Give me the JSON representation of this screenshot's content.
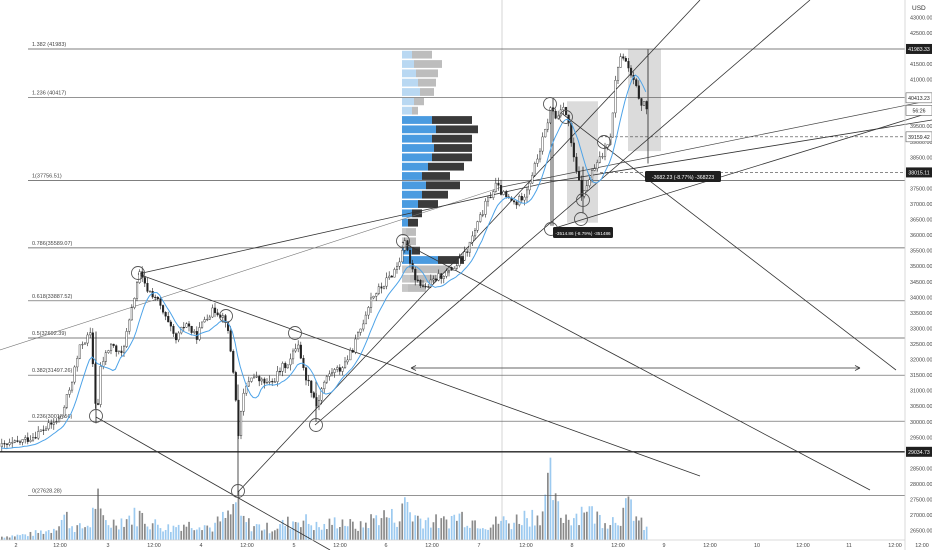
{
  "currency_label": "USD",
  "price_tag_label": "USD",
  "chart_data": {
    "type": "candlestick",
    "x_ticks": [
      "2",
      "12:00",
      "3",
      "12:00",
      "4",
      "12:00",
      "5",
      "12:00",
      "6",
      "12:00",
      "7",
      "12:00",
      "8",
      "12:00",
      "9",
      "12:00",
      "10",
      "12:00",
      "11",
      "12:00",
      "12:00"
    ],
    "y_ticks": [
      26500,
      27000,
      27500,
      28000,
      28500,
      29000,
      29500,
      30000,
      30500,
      31000,
      31500,
      32000,
      32500,
      33000,
      33500,
      34000,
      34500,
      35000,
      35500,
      36000,
      36500,
      37000,
      37500,
      38000,
      38500,
      39000,
      39500,
      40000,
      40500,
      41000,
      41500,
      42000,
      42500,
      43000
    ],
    "ylim": [
      26200,
      43300
    ],
    "price_tags": [
      {
        "label": "41983.33",
        "value": 41983.33,
        "style": "dark"
      },
      {
        "label": "40417.07",
        "value": 40417.07,
        "style": "dark"
      },
      {
        "label": "40413.23",
        "value": 40413.23,
        "style": "light"
      },
      {
        "label": "56:26",
        "value": 40010,
        "style": "light"
      },
      {
        "label": "39159.42",
        "value": 39159.42,
        "style": "light"
      },
      {
        "label": "38015.11",
        "value": 38015.11,
        "style": "dark"
      },
      {
        "label": "29034.73",
        "value": 29034.73,
        "style": "dark"
      }
    ],
    "fib_levels": [
      {
        "label": "1.382 (41983)",
        "value": 41983
      },
      {
        "label": "1.236 (40417)",
        "value": 40417
      },
      {
        "label": "1(37756.51)",
        "value": 37756.51
      },
      {
        "label": "0.786(35589.07)",
        "value": 35589.07
      },
      {
        "label": "0.618(33887.52)",
        "value": 33887.52
      },
      {
        "label": "0.5(32692.39)",
        "value": 32692.39
      },
      {
        "label": "0.382(31497.26)",
        "value": 31497.26
      },
      {
        "label": "0.236(30018.56)",
        "value": 30018.56
      },
      {
        "label": "0(27628.28)",
        "value": 27628.28
      }
    ],
    "annotations": [
      {
        "label": "-3682.23 (-8.77%) -368223"
      },
      {
        "label": "-3514.86 (-8.79%) -351486"
      }
    ],
    "price_path": [
      [
        0,
        29200
      ],
      [
        15,
        29300
      ],
      [
        30,
        29500
      ],
      [
        45,
        29800
      ],
      [
        60,
        30100
      ],
      [
        70,
        31200
      ],
      [
        80,
        32500
      ],
      [
        90,
        32800
      ],
      [
        96,
        30000
      ],
      [
        100,
        31800
      ],
      [
        110,
        32500
      ],
      [
        120,
        32100
      ],
      [
        130,
        33400
      ],
      [
        138,
        34800
      ],
      [
        145,
        34300
      ],
      [
        155,
        34000
      ],
      [
        165,
        33300
      ],
      [
        175,
        32600
      ],
      [
        185,
        33200
      ],
      [
        195,
        32700
      ],
      [
        205,
        33400
      ],
      [
        215,
        33600
      ],
      [
        225,
        33300
      ],
      [
        232,
        31800
      ],
      [
        238,
        29500
      ],
      [
        242,
        30800
      ],
      [
        250,
        31500
      ],
      [
        260,
        31300
      ],
      [
        270,
        31200
      ],
      [
        280,
        31700
      ],
      [
        290,
        32000
      ],
      [
        297,
        32600
      ],
      [
        303,
        31600
      ],
      [
        310,
        31100
      ],
      [
        316,
        30500
      ],
      [
        322,
        31200
      ],
      [
        330,
        31600
      ],
      [
        340,
        31700
      ],
      [
        350,
        32200
      ],
      [
        360,
        33000
      ],
      [
        370,
        34000
      ],
      [
        380,
        34300
      ],
      [
        390,
        34700
      ],
      [
        398,
        35100
      ],
      [
        403,
        35800
      ],
      [
        408,
        35300
      ],
      [
        415,
        34600
      ],
      [
        425,
        34300
      ],
      [
        435,
        34600
      ],
      [
        445,
        34800
      ],
      [
        455,
        35000
      ],
      [
        465,
        35400
      ],
      [
        475,
        36200
      ],
      [
        485,
        37000
      ],
      [
        495,
        37600
      ],
      [
        505,
        37200
      ],
      [
        515,
        37000
      ],
      [
        525,
        37400
      ],
      [
        535,
        38300
      ],
      [
        545,
        39400
      ],
      [
        550,
        40100
      ],
      [
        556,
        39700
      ],
      [
        562,
        40300
      ],
      [
        568,
        39500
      ],
      [
        573,
        38400
      ],
      [
        578,
        37700
      ],
      [
        582,
        37200
      ],
      [
        588,
        37800
      ],
      [
        595,
        38200
      ],
      [
        602,
        38600
      ],
      [
        610,
        39300
      ],
      [
        616,
        41400
      ],
      [
        622,
        41800
      ],
      [
        628,
        41300
      ],
      [
        634,
        40800
      ],
      [
        640,
        40300
      ],
      [
        645,
        40100
      ]
    ],
    "volume_path": [
      [
        0,
        4
      ],
      [
        10,
        5
      ],
      [
        20,
        6
      ],
      [
        30,
        7
      ],
      [
        40,
        10
      ],
      [
        50,
        12
      ],
      [
        60,
        24
      ],
      [
        65,
        30
      ],
      [
        70,
        18
      ],
      [
        80,
        14
      ],
      [
        90,
        20
      ],
      [
        96,
        56
      ],
      [
        100,
        26
      ],
      [
        110,
        20
      ],
      [
        120,
        24
      ],
      [
        130,
        28
      ],
      [
        140,
        30
      ],
      [
        150,
        20
      ],
      [
        160,
        18
      ],
      [
        170,
        14
      ],
      [
        180,
        20
      ],
      [
        190,
        18
      ],
      [
        200,
        22
      ],
      [
        210,
        14
      ],
      [
        220,
        24
      ],
      [
        230,
        30
      ],
      [
        236,
        52
      ],
      [
        240,
        26
      ],
      [
        250,
        18
      ],
      [
        260,
        16
      ],
      [
        270,
        14
      ],
      [
        280,
        18
      ],
      [
        290,
        22
      ],
      [
        300,
        26
      ],
      [
        310,
        20
      ],
      [
        320,
        14
      ],
      [
        330,
        20
      ],
      [
        340,
        24
      ],
      [
        350,
        18
      ],
      [
        360,
        16
      ],
      [
        370,
        24
      ],
      [
        380,
        30
      ],
      [
        390,
        28
      ],
      [
        400,
        26
      ],
      [
        405,
        56
      ],
      [
        410,
        30
      ],
      [
        420,
        26
      ],
      [
        430,
        24
      ],
      [
        440,
        20
      ],
      [
        450,
        26
      ],
      [
        460,
        30
      ],
      [
        470,
        24
      ],
      [
        480,
        22
      ],
      [
        490,
        18
      ],
      [
        500,
        24
      ],
      [
        510,
        20
      ],
      [
        520,
        28
      ],
      [
        530,
        30
      ],
      [
        540,
        32
      ],
      [
        545,
        46
      ],
      [
        550,
        74
      ],
      [
        555,
        40
      ],
      [
        560,
        30
      ],
      [
        570,
        28
      ],
      [
        580,
        34
      ],
      [
        585,
        48
      ],
      [
        590,
        32
      ],
      [
        600,
        26
      ],
      [
        610,
        24
      ],
      [
        620,
        30
      ],
      [
        630,
        42
      ],
      [
        638,
        22
      ],
      [
        645,
        14
      ]
    ]
  }
}
